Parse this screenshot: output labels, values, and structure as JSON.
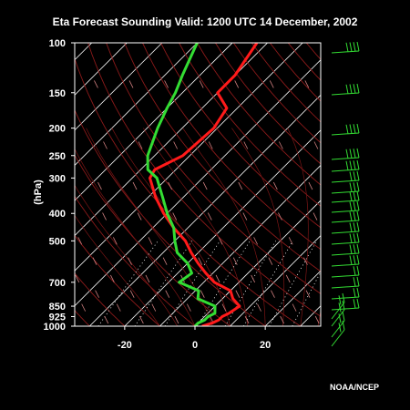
{
  "chart_data": {
    "type": "line",
    "title": "Eta Forecast Sounding Valid: 1200 UTC 14 December, 2002",
    "xlabel": "",
    "ylabel": "(hPa)",
    "ylim": [
      1000,
      100
    ],
    "xlim": [
      -35,
      35
    ],
    "yscale": "log",
    "pressure_ticks": [
      100,
      150,
      200,
      250,
      300,
      400,
      500,
      700,
      850,
      925,
      1000
    ],
    "pressure_tick_labels": [
      "100",
      "150",
      "200",
      "250",
      "300",
      "400",
      "500",
      "700",
      "850",
      "925",
      "1000"
    ],
    "x_ticks": [
      -20,
      0,
      20
    ],
    "x_tick_labels": [
      "-20",
      "0",
      "20"
    ],
    "series": [
      {
        "name": "",
        "color": "#ff1a1a",
        "pressure": [
          1000,
          975,
          950,
          925,
          900,
          850,
          800,
          750,
          700,
          650,
          600,
          550,
          500,
          450,
          400,
          350,
          300,
          280,
          250,
          200,
          170,
          150,
          130,
          100
        ],
        "values": [
          2,
          4,
          5,
          5,
          6,
          7,
          3,
          0,
          -7,
          -12,
          -17,
          -22,
          -27,
          -34,
          -41,
          -48,
          -55,
          -56,
          -52,
          -51,
          -53,
          -60,
          -60,
          -63
        ]
      },
      {
        "name": "",
        "color": "#33dd33",
        "pressure": [
          1000,
          975,
          950,
          925,
          900,
          850,
          800,
          750,
          700,
          650,
          600,
          550,
          500,
          450,
          400,
          350,
          300,
          280,
          250,
          200,
          170,
          150,
          130,
          100
        ],
        "values": [
          0,
          0,
          1,
          1,
          2,
          0,
          -7,
          -9,
          -17,
          -16,
          -20,
          -26,
          -30,
          -34,
          -40,
          -46,
          -53,
          -58,
          -62,
          -67,
          -70,
          -72,
          -75,
          -80
        ]
      }
    ]
  },
  "credit": "NOAA/NCEP"
}
